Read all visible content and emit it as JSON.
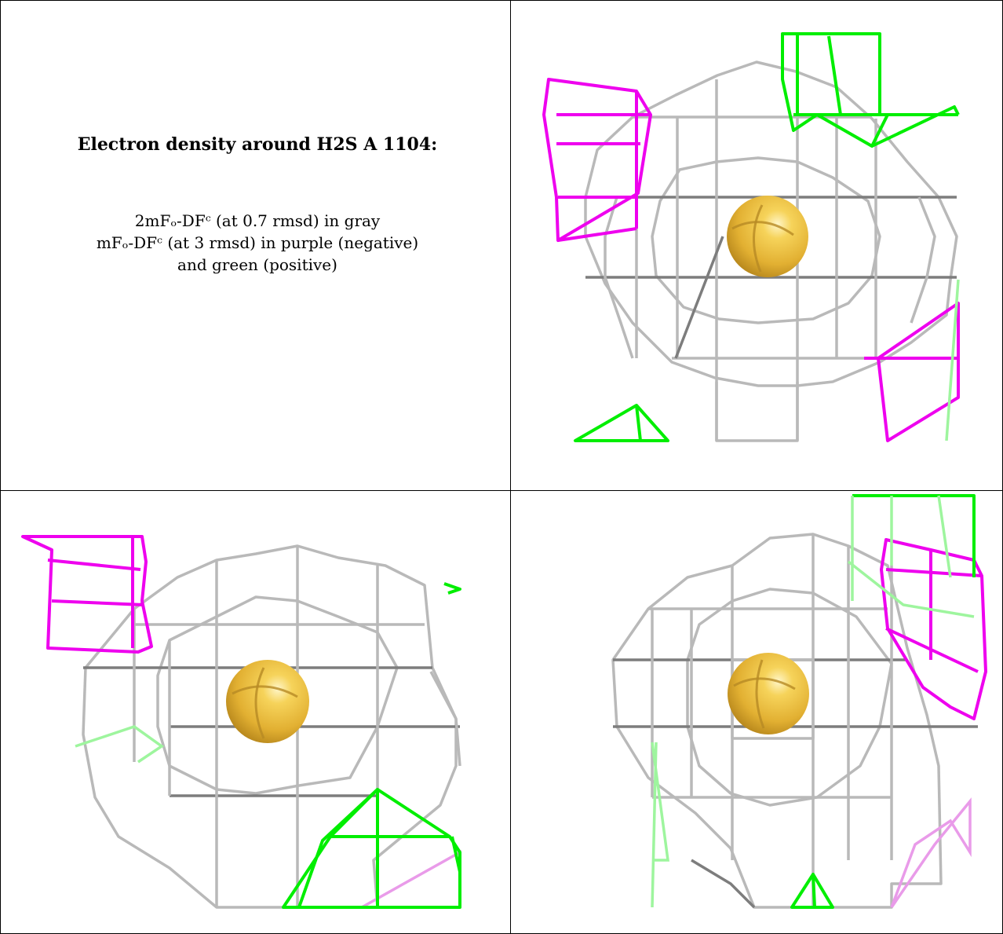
{
  "caption": {
    "title": "Electron density around H2S A 1104:",
    "line1": "2mFₒ-DFᶜ (at 0.7 rmsd) in gray",
    "line2": "mFₒ-DFᶜ (at 3 rmsd) in purple (negative)",
    "line3": "and green (positive)"
  },
  "colors": {
    "map_2fofc": "#b9b9b9",
    "map_fofc_negative": "#ee00ee",
    "map_fofc_positive": "#00ee00",
    "atom": "#e8b83a"
  },
  "views": [
    "density-view-1",
    "density-view-2",
    "density-view-3"
  ]
}
